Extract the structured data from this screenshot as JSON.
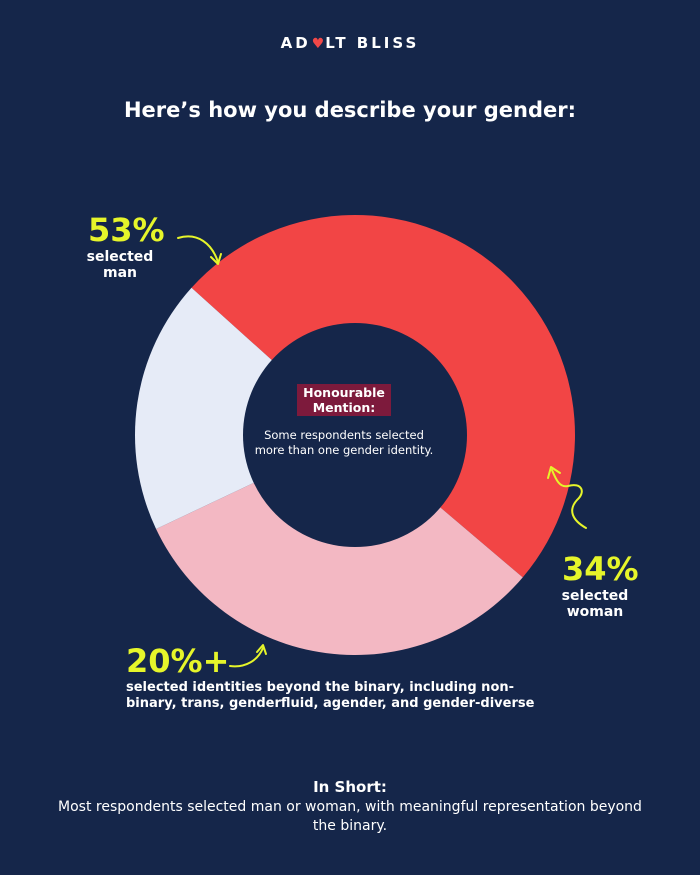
{
  "brand": {
    "left": "AD",
    "heart": "♥",
    "right": "LT BLISS"
  },
  "title": "Here’s how you describe your gender:",
  "colors": {
    "background": "#15264a",
    "man": "#f24545",
    "woman": "#f3b8c3",
    "beyond_binary": "#e6ebf7",
    "accent": "#e6f52a",
    "badge": "#7d1a3c"
  },
  "chart_data": {
    "type": "pie",
    "variant": "donut",
    "start_angle_deg": 222,
    "slices": [
      {
        "key": "man",
        "value": 53,
        "display": "53%",
        "label": "selected man",
        "color": "#f24545"
      },
      {
        "key": "woman",
        "value": 34,
        "display": "34%",
        "label": "selected woman",
        "color": "#f3b8c3"
      },
      {
        "key": "beyond_binary",
        "value": 20,
        "display": "20%+",
        "label": "selected identities beyond the binary, including non-binary, trans, genderfluid, agender, and gender-diverse",
        "color": "#e6ebf7"
      }
    ],
    "center": {
      "badge": "Honourable Mention:",
      "note": "Some respondents selected more than one gender identity."
    }
  },
  "labels": {
    "man_pct": "53%",
    "man_line1": "selected",
    "man_line2": "man",
    "woman_pct": "34%",
    "woman_line1": "selected",
    "woman_line2": "woman",
    "nb_pct": "20%+",
    "nb_desc": "selected identities beyond the binary, including non-binary, trans, genderfluid, agender, and gender-diverse"
  },
  "center_badge_line1": "Honourable",
  "center_badge_line2": "Mention:",
  "summary": {
    "heading": "In Short:",
    "body": "Most respondents selected man or woman, with meaningful representation beyond the binary."
  }
}
